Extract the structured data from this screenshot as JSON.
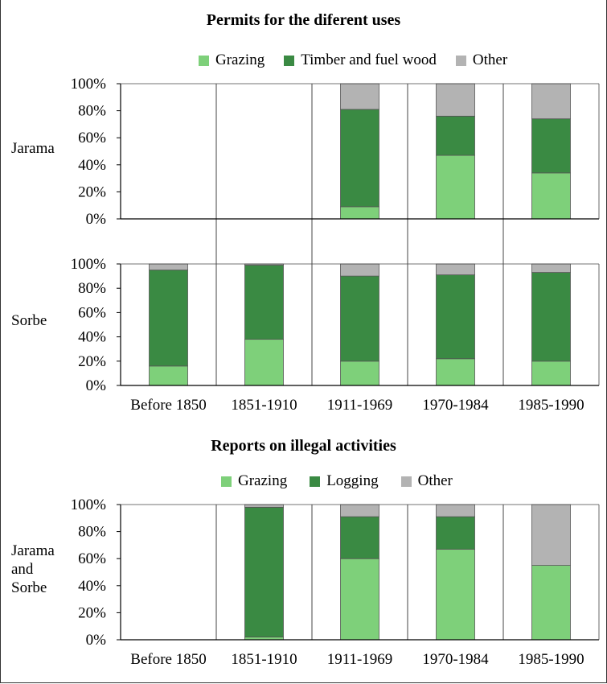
{
  "colors": {
    "grazing": "#7ed07a",
    "timber": "#3a8a43",
    "other": "#b3b3b3",
    "bar_stroke": "#555555",
    "axis": "#000000",
    "divider": "#444444"
  },
  "legend_top": {
    "items": [
      "Grazing",
      "Timber and fuel wood",
      "Other"
    ]
  },
  "legend_bottom": {
    "items": [
      "Grazing",
      "Logging",
      "Other"
    ]
  },
  "labels": {
    "jarama": "Jarama",
    "sorbe": "Sorbe",
    "jarama_and_sorbe": [
      "Jarama",
      "and",
      "Sorbe"
    ]
  },
  "chart_data": [
    {
      "type": "bar",
      "stacked": true,
      "title": "Permits for the diferent uses",
      "panel": "Jarama",
      "categories": [
        "Before 1850",
        "1851-1910",
        "1911-1969",
        "1970-1984",
        "1985-1990"
      ],
      "ylim": [
        0,
        100
      ],
      "yticks": [
        "0%",
        "20%",
        "40%",
        "60%",
        "80%",
        "100%"
      ],
      "series": [
        {
          "name": "Grazing",
          "values": [
            null,
            null,
            9,
            47,
            34
          ]
        },
        {
          "name": "Timber and fuel wood",
          "values": [
            null,
            null,
            72,
            29,
            40
          ]
        },
        {
          "name": "Other",
          "values": [
            null,
            null,
            19,
            24,
            26
          ]
        }
      ]
    },
    {
      "type": "bar",
      "stacked": true,
      "panel": "Sorbe",
      "categories": [
        "Before 1850",
        "1851-1910",
        "1911-1969",
        "1970-1984",
        "1985-1990"
      ],
      "ylim": [
        0,
        100
      ],
      "yticks": [
        "0%",
        "20%",
        "40%",
        "60%",
        "80%",
        "100%"
      ],
      "series": [
        {
          "name": "Grazing",
          "values": [
            16,
            38,
            20,
            22,
            20
          ]
        },
        {
          "name": "Timber and fuel wood",
          "values": [
            79,
            61,
            70,
            69,
            73
          ]
        },
        {
          "name": "Other",
          "values": [
            5,
            1,
            10,
            9,
            7
          ]
        }
      ]
    },
    {
      "type": "bar",
      "stacked": true,
      "title": "Reports on illegal activities",
      "panel": "Jarama and Sorbe",
      "categories": [
        "Before 1850",
        "1851-1910",
        "1911-1969",
        "1970-1984",
        "1985-1990"
      ],
      "ylim": [
        0,
        100
      ],
      "yticks": [
        "0%",
        "20%",
        "40%",
        "60%",
        "80%",
        "100%"
      ],
      "series": [
        {
          "name": "Grazing",
          "values": [
            null,
            2,
            60,
            67,
            55
          ]
        },
        {
          "name": "Logging",
          "values": [
            null,
            96,
            31,
            24,
            0
          ]
        },
        {
          "name": "Other",
          "values": [
            null,
            2,
            9,
            9,
            45
          ]
        }
      ]
    }
  ]
}
